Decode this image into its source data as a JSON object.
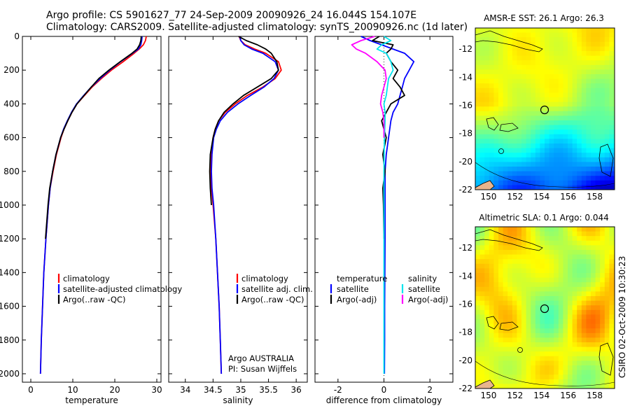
{
  "header": {
    "line1": "Argo profile: CS 5901627_77 24-Sep-2009 20090926_24 16.044S 154.107E",
    "line2": "Climatology: CARS2009. Satellite-adjusted climatology: synTS_20090926.nc (1d later)"
  },
  "footer": {
    "stamp": "CSIRO 02-Oct-2009 10:30:23"
  },
  "colors": {
    "climatology": "#ff0000",
    "satellite": "#0000ff",
    "argo": "#000000",
    "satellite_salinity": "#00e5ee",
    "argo_salinity": "#ff00ff"
  },
  "chart_data": [
    {
      "id": "temperature",
      "type": "line",
      "xlabel": "temperature",
      "ylabel": "",
      "xlim": [
        -2,
        31
      ],
      "ylim": [
        0,
        2050
      ],
      "y_inverted": true,
      "xticks": [
        0,
        10,
        20,
        30
      ],
      "yticks": [
        0,
        200,
        400,
        600,
        800,
        1000,
        1200,
        1400,
        1600,
        1800,
        2000
      ],
      "legend": [
        "climatology",
        "satellite-adjusted climatology",
        "Argo(..raw -QC)"
      ],
      "depth": [
        0,
        25,
        50,
        75,
        100,
        150,
        200,
        250,
        300,
        350,
        400,
        450,
        500,
        550,
        600,
        700,
        800,
        900,
        1000,
        1200,
        1400,
        1600,
        1800,
        2000
      ],
      "series": [
        {
          "name": "climatology",
          "color_key": "climatology",
          "values": [
            27.5,
            27.3,
            26.8,
            25.8,
            24.6,
            22.0,
            19.2,
            16.8,
            14.6,
            12.8,
            11.0,
            9.8,
            8.8,
            7.9,
            7.2,
            6.1,
            5.3,
            4.6,
            4.2,
            3.6,
            3.1,
            2.8,
            2.5,
            2.3
          ]
        },
        {
          "name": "satellite-adjusted climatology",
          "color_key": "satellite",
          "values": [
            26.5,
            26.4,
            26.2,
            25.6,
            24.2,
            21.4,
            18.8,
            16.5,
            14.4,
            12.6,
            10.9,
            9.7,
            8.7,
            7.8,
            7.1,
            6.0,
            5.2,
            4.6,
            4.2,
            3.6,
            3.1,
            2.8,
            2.5,
            2.3
          ]
        },
        {
          "name": "Argo(..raw -QC)",
          "color_key": "argo",
          "values": [
            26.3,
            26.2,
            25.9,
            25.3,
            24.1,
            21.3,
            18.6,
            16.2,
            14.4,
            12.7,
            11.0,
            9.8,
            8.8,
            7.9,
            7.1,
            6.0,
            5.2,
            4.5,
            4.1,
            3.5,
            null,
            null,
            null,
            null
          ]
        }
      ]
    },
    {
      "id": "salinity",
      "type": "line",
      "xlabel": "salinity",
      "xlim": [
        33.7,
        36.2
      ],
      "ylim": [
        0,
        2050
      ],
      "y_inverted": true,
      "xticks": [
        34,
        34.5,
        35,
        35.5,
        36
      ],
      "legend": [
        "climatology",
        "satellite adj. clim.",
        "Argo(..raw -QC)"
      ],
      "annotation": [
        "Argo AUSTRALIA",
        "PI: Susan Wijffels"
      ],
      "depth": [
        0,
        25,
        50,
        75,
        100,
        150,
        200,
        250,
        300,
        350,
        400,
        450,
        500,
        550,
        600,
        700,
        800,
        900,
        1000,
        1200,
        1400,
        1600,
        1800,
        2000
      ],
      "series": [
        {
          "name": "climatology",
          "color_key": "climatology",
          "values": [
            34.97,
            35.0,
            35.08,
            35.25,
            35.45,
            35.68,
            35.73,
            35.62,
            35.4,
            35.12,
            34.9,
            34.72,
            34.6,
            34.54,
            34.5,
            34.47,
            34.46,
            34.47,
            34.5,
            34.55,
            34.58,
            34.61,
            34.63,
            34.65
          ]
        },
        {
          "name": "satellite adj. clim.",
          "color_key": "satellite",
          "values": [
            34.98,
            35.0,
            35.06,
            35.2,
            35.4,
            35.62,
            35.68,
            35.6,
            35.42,
            35.18,
            34.95,
            34.76,
            34.63,
            34.56,
            34.51,
            34.48,
            34.47,
            34.48,
            34.51,
            34.55,
            34.58,
            34.61,
            34.63,
            34.65
          ]
        },
        {
          "name": "Argo(..raw -QC)",
          "color_key": "argo",
          "values": [
            34.96,
            35.1,
            35.3,
            35.45,
            35.55,
            35.65,
            35.68,
            35.55,
            35.3,
            35.05,
            34.86,
            34.7,
            34.6,
            34.54,
            34.5,
            34.45,
            34.44,
            34.45,
            34.47,
            null,
            null,
            null,
            null,
            null
          ]
        }
      ]
    },
    {
      "id": "difference",
      "type": "line",
      "xlabel": "difference from climatology",
      "xlim": [
        -3,
        3
      ],
      "ylim": [
        0,
        2050
      ],
      "y_inverted": true,
      "xticks": [
        -2,
        0,
        2
      ],
      "legend_titles": [
        "temperature",
        "salinity"
      ],
      "legend": [
        "satellite",
        "Argo(-adj)",
        "satellite",
        "Argo(-adj)"
      ],
      "depth": [
        0,
        25,
        50,
        75,
        100,
        150,
        200,
        250,
        300,
        350,
        400,
        450,
        500,
        600,
        700,
        800,
        900,
        1000,
        1200,
        1400,
        1600,
        1800,
        2000
      ],
      "series": [
        {
          "name": "temperature satellite",
          "color_key": "satellite",
          "values": [
            -1.0,
            -0.6,
            -0.1,
            0.4,
            0.9,
            1.3,
            1.1,
            0.9,
            0.8,
            0.7,
            0.6,
            0.4,
            0.3,
            0.2,
            0.1,
            0.05,
            0.05,
            0.05,
            0.05,
            0.04,
            0.03,
            0.03,
            0.02
          ]
        },
        {
          "name": "temperature Argo(-adj)",
          "color_key": "argo",
          "values": [
            -0.2,
            -0.5,
            0.4,
            0.3,
            0.1,
            0.3,
            0.6,
            0.4,
            0.7,
            0.9,
            0.3,
            0.1,
            -0.1,
            0.1,
            -0.05,
            0.05,
            -0.05,
            -0.02,
            0.0,
            null,
            null,
            null,
            null
          ]
        },
        {
          "name": "salinity satellite",
          "color_key": "satellite_salinity",
          "values": [
            0.0,
            0.3,
            -0.1,
            -0.3,
            0.1,
            0.3,
            0.4,
            0.2,
            0.15,
            0.1,
            0.0,
            0.05,
            0.05,
            0.02,
            0.01,
            0.0,
            0.0,
            0.0,
            0.0,
            0.0,
            0.0,
            0.0,
            0.0
          ]
        },
        {
          "name": "salinity Argo(-adj)",
          "color_key": "argo_salinity",
          "values": [
            -0.4,
            -1.0,
            -1.4,
            -1.2,
            -0.8,
            -0.3,
            0.05,
            0.1,
            0.0,
            -0.1,
            -0.15,
            -0.05,
            0.0,
            0.0,
            null,
            null,
            null,
            null,
            null,
            null,
            null,
            null,
            null
          ]
        }
      ]
    }
  ],
  "maps": [
    {
      "id": "sst",
      "title": "AMSR-E SST: 26.1 Argo: 26.3",
      "xticks": [
        150,
        152,
        154,
        156,
        158
      ],
      "yticks": [
        -12,
        -14,
        -16,
        -18,
        -20,
        -22
      ],
      "lon_range": [
        149,
        159.5
      ],
      "lat_range": [
        -22,
        -10.5
      ],
      "float_lon": 154.107,
      "float_lat": -16.044
    },
    {
      "id": "sla",
      "title": "Altimetric SLA: 0.1 Argo: 0.044",
      "xticks": [
        150,
        152,
        154,
        156,
        158
      ],
      "yticks": [
        -12,
        -14,
        -16,
        -18,
        -20,
        -22
      ],
      "lon_range": [
        149,
        159.5
      ],
      "lat_range": [
        -22,
        -10.5
      ],
      "float_lon": 154.107,
      "float_lat": -16.044
    }
  ]
}
